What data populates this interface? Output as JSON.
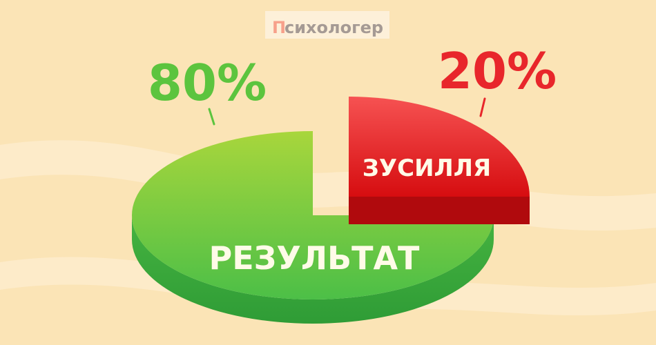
{
  "logo": {
    "first_letter": "П",
    "rest": "сихологер"
  },
  "chart_data": {
    "type": "pie",
    "title": "",
    "slices": [
      {
        "name": "РЕЗУЛЬТАТ",
        "value": 80,
        "label": "80%",
        "color": "#5cc43e"
      },
      {
        "name": "ЗУСИЛЛЯ",
        "value": 20,
        "label": "20%",
        "color": "#e8262b"
      }
    ],
    "style": "3d-exploded"
  },
  "colors": {
    "background": "#fbe4b6",
    "green": "#5cc43e",
    "red": "#e8262b",
    "logo_accent": "#f7a08a",
    "logo_text": "#a59a94"
  }
}
